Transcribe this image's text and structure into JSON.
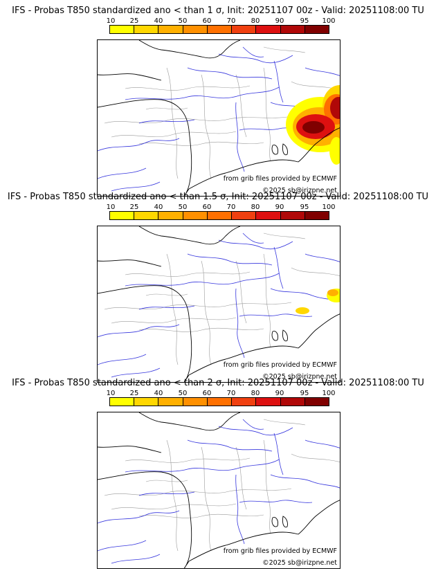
{
  "colorbar": {
    "ticks": [
      "10",
      "25",
      "40",
      "50",
      "60",
      "70",
      "80",
      "90",
      "95",
      "100"
    ],
    "colors": [
      "#ffff00",
      "#ffd700",
      "#ffb000",
      "#ff9000",
      "#ff7000",
      "#f04010",
      "#dd1010",
      "#b00808",
      "#800000"
    ]
  },
  "credits": {
    "source": "from grib files provided by ECMWF",
    "copyright": "©2025 sb@irizpne.net"
  },
  "panels": [
    {
      "title": "IFS - Probas T850  standardized ano < than 1 σ, Init: 20251107 00z - Valid: 20251108:00 TU",
      "intensity": 3
    },
    {
      "title": "IFS - Probas T850  standardized ano < than 1.5 σ, Init: 20251107 00z - Valid: 20251108:00 TU",
      "intensity": 1
    },
    {
      "title": "IFS - Probas T850  standardized ano < than 2 σ, Init: 20251107 00z - Valid: 20251108:00 TU",
      "intensity": 0
    }
  ],
  "style": {
    "coast_color": "#000000",
    "river_color": "#3333dd",
    "border_color": "#999999"
  }
}
